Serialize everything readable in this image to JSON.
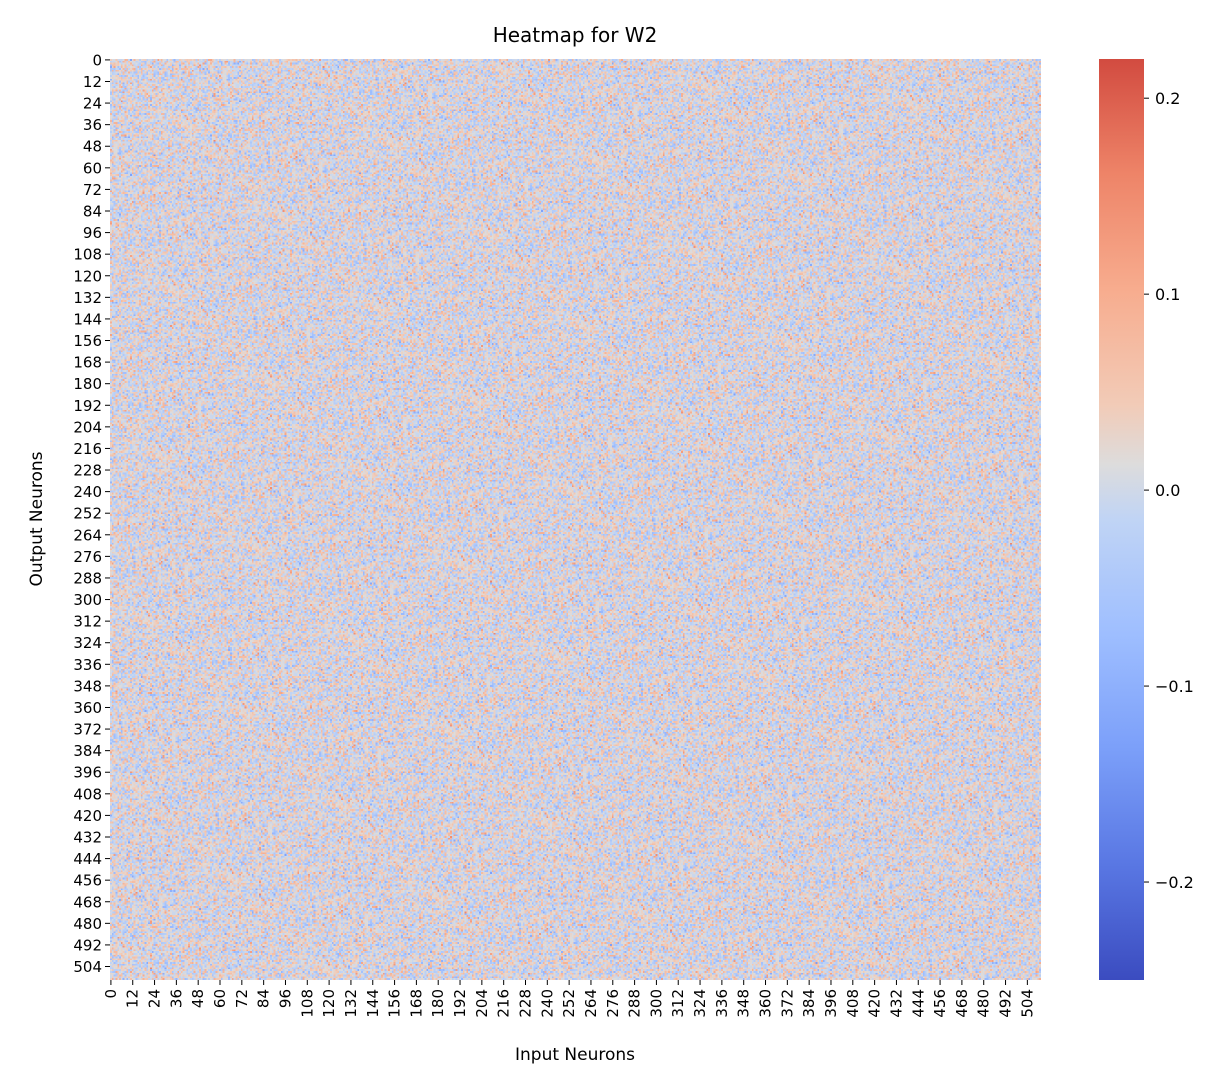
{
  "chart_data": {
    "type": "heatmap",
    "title": "Heatmap for W2",
    "xlabel": "Input Neurons",
    "ylabel": "Output Neurons",
    "rows": 512,
    "cols": 512,
    "x_ticks": [
      "0",
      "12",
      "24",
      "36",
      "48",
      "60",
      "72",
      "84",
      "96",
      "108",
      "120",
      "132",
      "144",
      "156",
      "168",
      "180",
      "192",
      "204",
      "216",
      "228",
      "240",
      "252",
      "264",
      "276",
      "288",
      "300",
      "312",
      "324",
      "336",
      "348",
      "360",
      "372",
      "384",
      "396",
      "408",
      "420",
      "432",
      "444",
      "456",
      "468",
      "480",
      "492",
      "504"
    ],
    "y_ticks": [
      "0",
      "12",
      "24",
      "36",
      "48",
      "60",
      "72",
      "84",
      "96",
      "108",
      "120",
      "132",
      "144",
      "156",
      "168",
      "180",
      "192",
      "204",
      "216",
      "228",
      "240",
      "252",
      "264",
      "276",
      "288",
      "300",
      "312",
      "324",
      "336",
      "348",
      "360",
      "372",
      "384",
      "396",
      "408",
      "420",
      "432",
      "444",
      "456",
      "468",
      "480",
      "492",
      "504"
    ],
    "colormap": "coolwarm",
    "vmin": -0.25,
    "vmax": 0.22,
    "colorbar_ticks": [
      0.2,
      0.1,
      0.0,
      -0.1,
      -0.2
    ],
    "colorbar_tick_labels": [
      "0.2",
      "0.1",
      "0.0",
      "−0.1",
      "−0.2"
    ],
    "grid": false,
    "legend": "colorbar-right"
  }
}
